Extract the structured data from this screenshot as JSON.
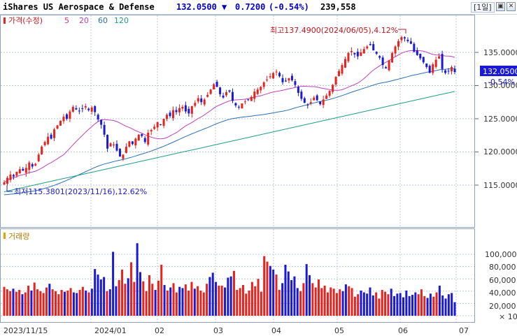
{
  "header": {
    "name": "iShares US Aerospace & Defense",
    "price": "132.0500",
    "change_arrow": "▼",
    "change": "0.7200",
    "change_pct": "(-0.54%)",
    "volume": "239,558",
    "timeframe": "[1일]",
    "window_buttons": [
      "▣",
      "✕"
    ]
  },
  "price_panel": {
    "legend": {
      "main": "가격(수정)",
      "ma": [
        "5",
        "20",
        "60",
        "120"
      ]
    },
    "y_ticks": [
      "135.0000",
      "130.0000",
      "125.0000",
      "120.0000",
      "115.0000"
    ],
    "current_price_tag": "132.0500",
    "current_change_tag": "-0.54%",
    "high_annotation": "최고137.4900(2024/06/05),4.12%",
    "low_annotation": "최저115.3801(2023/11/16),12.62%"
  },
  "volume_panel": {
    "legend": "거래량",
    "y_ticks": [
      "100,000",
      "80,000",
      "60,000",
      "40,000",
      "20,000"
    ],
    "unit_label": "× 10"
  },
  "x_axis": {
    "labels": [
      "2023/11/15",
      "2024/01",
      "02",
      "03",
      "04",
      "05",
      "06",
      "07"
    ]
  },
  "colors": {
    "up": "#e8231e",
    "down": "#1a1ad6",
    "ma5": "#d62c8a",
    "ma20": "#c040c0",
    "ma60": "#2a6fb8",
    "ma120": "#1e9e8a",
    "grid": "#b9c7dd",
    "frame": "#8ea2c0",
    "title_price": "#0000cc",
    "title_change": "#0000cc"
  },
  "chart_data": [
    {
      "type": "candlestick",
      "title": "iShares US Aerospace & Defense",
      "series_legend": [
        "가격(수정)",
        "5",
        "20",
        "60",
        "120"
      ],
      "x_range": [
        "2023-11-15",
        "2024-06-28"
      ],
      "ylim": [
        112.0,
        140.0
      ],
      "scale": "linear",
      "grid": true,
      "close": [
        115.4,
        116.1,
        116.6,
        116.3,
        117.0,
        117.4,
        117.2,
        117.6,
        118.4,
        117.8,
        118.2,
        119.6,
        120.8,
        121.5,
        122.3,
        122.0,
        123.4,
        124.0,
        124.7,
        125.3,
        125.0,
        126.1,
        126.8,
        126.4,
        126.2,
        126.5,
        126.9,
        126.3,
        126.7,
        126.0,
        124.9,
        124.1,
        122.6,
        120.5,
        121.3,
        121.1,
        120.2,
        119.3,
        119.6,
        120.8,
        121.6,
        121.2,
        122.0,
        122.6,
        122.4,
        121.5,
        122.9,
        123.3,
        123.8,
        124.5,
        124.1,
        125.0,
        125.6,
        125.4,
        126.3,
        126.0,
        126.6,
        126.8,
        126.1,
        125.8,
        126.9,
        127.4,
        128.1,
        127.5,
        127.9,
        128.6,
        129.4,
        130.2,
        129.8,
        128.7,
        128.2,
        129.0,
        129.1,
        127.7,
        127.0,
        126.7,
        127.3,
        127.6,
        127.9,
        128.3,
        129.1,
        129.4,
        129.8,
        130.5,
        130.9,
        131.4,
        131.9,
        132.1,
        131.4,
        130.5,
        130.7,
        131.1,
        130.8,
        130.1,
        128.9,
        128.0,
        127.4,
        127.1,
        127.5,
        128.2,
        127.8,
        127.2,
        127.9,
        128.5,
        129.2,
        130.1,
        131.3,
        132.2,
        133.1,
        134.0,
        134.9,
        135.2,
        134.7,
        134.4,
        135.0,
        135.5,
        135.9,
        136.1,
        135.3,
        134.8,
        134.2,
        133.1,
        132.6,
        133.8,
        134.9,
        135.9,
        136.7,
        137.3,
        137.1,
        136.7,
        136.3,
        135.1,
        134.6,
        134.1,
        133.5,
        132.8,
        131.9,
        133.2,
        133.9,
        134.4,
        132.5,
        131.9,
        132.2,
        132.8,
        132.05
      ],
      "ma_note": "moving averages 5/20/60/120 drawn from close series"
    },
    {
      "type": "bar",
      "title": "거래량",
      "y_unit": "× 10",
      "ylim": [
        0,
        120000
      ],
      "values": [
        47,
        43,
        40,
        44,
        39,
        42,
        35,
        38,
        49,
        41,
        54,
        43,
        40,
        37,
        46,
        52,
        43,
        40,
        35,
        42,
        39,
        41,
        45,
        38,
        37,
        42,
        47,
        41,
        38,
        44,
        76,
        67,
        59,
        63,
        40,
        43,
        104,
        48,
        58,
        75,
        52,
        61,
        87,
        55,
        118,
        71,
        56,
        40,
        66,
        52,
        42,
        57,
        83,
        50,
        41,
        46,
        53,
        38,
        47,
        45,
        51,
        41,
        55,
        44,
        48,
        41,
        38,
        52,
        63,
        70,
        55,
        49,
        49,
        46,
        62,
        64,
        73,
        42,
        45,
        50,
        36,
        41,
        55,
        48,
        60,
        39,
        97,
        88,
        81,
        75,
        67,
        42,
        53,
        83,
        72,
        58,
        64,
        45,
        40,
        53,
        84,
        66,
        53,
        46,
        59,
        45,
        49,
        38,
        46,
        44,
        37,
        43,
        40,
        51,
        48,
        45,
        31,
        35,
        41,
        38,
        36,
        46,
        33,
        38,
        28,
        42,
        39,
        35,
        44,
        32,
        36,
        37,
        30,
        41,
        32,
        34,
        38,
        35,
        43,
        32,
        29,
        36,
        31,
        38,
        49,
        33,
        28,
        35,
        37,
        22
      ]
    }
  ]
}
